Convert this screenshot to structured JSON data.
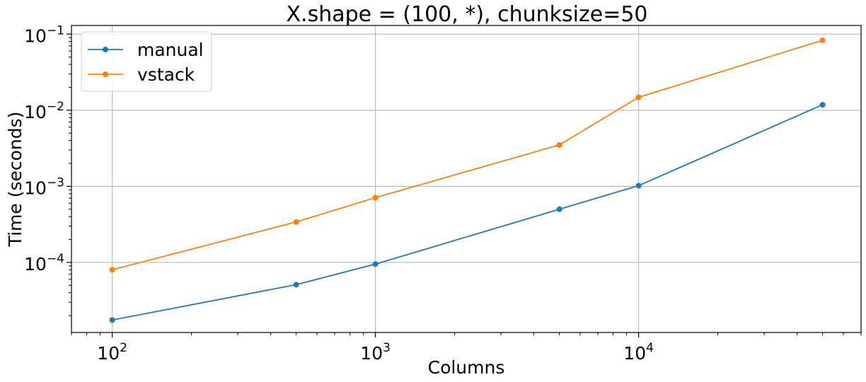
{
  "chart_data": {
    "type": "line",
    "title": "X.shape = (100, *), chunksize=50",
    "xlabel": "Columns",
    "ylabel": "Time (seconds)",
    "xscale": "log",
    "yscale": "log",
    "xlim": [
      70,
      70000
    ],
    "ylim": [
      1.2e-05,
      0.13
    ],
    "grid": true,
    "legend_position": "top-left",
    "x": [
      100,
      500,
      1000,
      5000,
      10000,
      50000
    ],
    "x_ticks": [
      {
        "value": 100,
        "base": "10",
        "exp": "2"
      },
      {
        "value": 1000,
        "base": "10",
        "exp": "3"
      },
      {
        "value": 10000,
        "base": "10",
        "exp": "4"
      }
    ],
    "y_ticks": [
      {
        "value": 0.0001,
        "base": "10",
        "exp": "−4"
      },
      {
        "value": 0.001,
        "base": "10",
        "exp": "−3"
      },
      {
        "value": 0.01,
        "base": "10",
        "exp": "−2"
      },
      {
        "value": 0.1,
        "base": "10",
        "exp": "−1"
      }
    ],
    "series": [
      {
        "name": "manual",
        "color": "#1f77b4",
        "values": [
          1.75e-05,
          5.1e-05,
          9.5e-05,
          0.0005,
          0.00102,
          0.0118
        ]
      },
      {
        "name": "vstack",
        "color": "#ff7f0e",
        "values": [
          8e-05,
          0.00034,
          0.00071,
          0.0035,
          0.0148,
          0.083
        ]
      }
    ]
  }
}
